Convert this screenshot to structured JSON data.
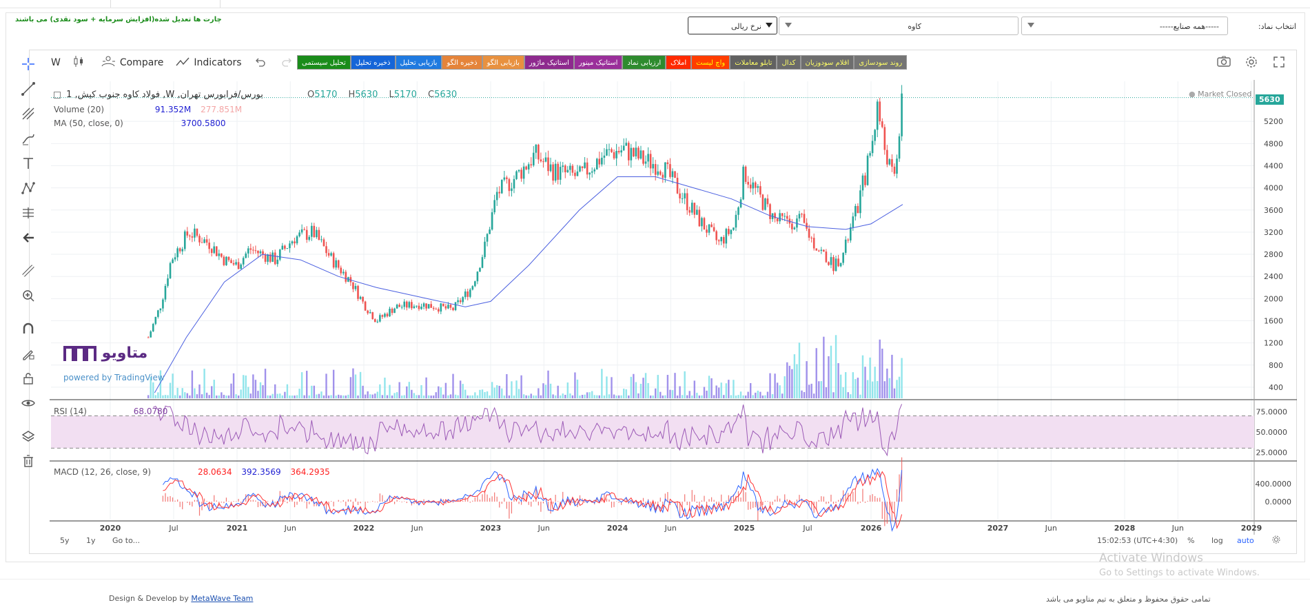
{
  "header": {
    "adjusted_note": "چارت ها تعدیل شده(افزایش سرمایه + سود نقدی) می باشند",
    "symbol_label": "انتخاب نماد:",
    "industry_select": "-----همه صنایع-----",
    "symbol_select": "کاوه",
    "currency_select": "نرخ ریالی"
  },
  "toolbar": {
    "interval": "W",
    "compare": "Compare",
    "indicators": "Indicators"
  },
  "colored_buttons": [
    {
      "label": "تحلیل سیستمی",
      "bg": "#1a8c1a",
      "fg": "#ffffff"
    },
    {
      "label": "ذخیره تحلیل",
      "bg": "#1565d8",
      "fg": "#ffffff"
    },
    {
      "label": "بازیابی تحلیل",
      "bg": "#1f7ae0",
      "fg": "#ffffff"
    },
    {
      "label": "ذخیره الگو",
      "bg": "#e5843a",
      "fg": "#ffffff"
    },
    {
      "label": "بازیابی الگو",
      "bg": "#e8913f",
      "fg": "#ffffff"
    },
    {
      "label": "استاتیک ماژور",
      "bg": "#8e2a8e",
      "fg": "#ffffff"
    },
    {
      "label": "استاتیک مینور",
      "bg": "#9a2f9a",
      "fg": "#ffffff"
    },
    {
      "label": "ارزیابی نماد",
      "bg": "#2e8b2e",
      "fg": "#ffffff"
    },
    {
      "label": "املاک",
      "bg": "#ff2a00",
      "fg": "#ffffff"
    },
    {
      "label": "واچ لیست",
      "bg": "#ff3d00",
      "fg": "#ffff00"
    },
    {
      "label": "تابلو معاملات",
      "bg": "#616161",
      "fg": "#ffff66"
    },
    {
      "label": "کدال",
      "bg": "#6b6b6b",
      "fg": "#ffff66"
    },
    {
      "label": "اقلام سودوزیان",
      "bg": "#6e6e6e",
      "fg": "#ffff66"
    },
    {
      "label": "روند سودسازی",
      "bg": "#757575",
      "fg": "#ffff66"
    }
  ],
  "legend": {
    "title": "1 ,فولاد کاوه جنوب کیش ,W ,بورس/فرابورس تهران",
    "o_label": "O",
    "o": "5170",
    "h_label": "H",
    "h": "5630",
    "l_label": "L",
    "l": "5170",
    "c_label": "C",
    "c": "5630",
    "volume_label": "Volume (20)",
    "volume_v1": "91.352M",
    "volume_v2": "277.851M",
    "ma_label": "MA (50, close, 0)",
    "ma_value": "3700.5800",
    "market_status": "Market Closed",
    "last_price": "5630",
    "rsi_label": "RSI (14)",
    "rsi_value": "68.0780",
    "macd_label": "MACD (12, 26, close, 9)",
    "macd_hist": "28.0634",
    "macd_line": "392.3569",
    "macd_signal": "364.2935"
  },
  "chart_data": {
    "type": "candlestick",
    "interval": "weekly",
    "y_ticks": [
      400,
      800,
      1200,
      1600,
      2000,
      2400,
      2800,
      3200,
      3600,
      4000,
      4400,
      4800,
      5200
    ],
    "x_ticks": [
      "2020",
      "Jul",
      "2021",
      "Jun",
      "2022",
      "Jun",
      "2023",
      "Jun",
      "2024",
      "Jun",
      "2025",
      "Jul",
      "2026",
      "2027",
      "Jun",
      "2028",
      "Jun",
      "2029"
    ],
    "x_tick_pos": [
      0.0,
      0.5,
      1.0,
      1.42,
      2.0,
      2.42,
      3.0,
      3.42,
      4.0,
      4.42,
      5.0,
      5.5,
      6.0,
      7.0,
      7.42,
      8.0,
      8.42,
      9.0
    ],
    "price_path": [
      [
        0.3,
        1300
      ],
      [
        0.4,
        1900
      ],
      [
        0.48,
        2700
      ],
      [
        0.62,
        3200
      ],
      [
        0.78,
        3000
      ],
      [
        0.9,
        2700
      ],
      [
        1.0,
        2600
      ],
      [
        1.1,
        2900
      ],
      [
        1.3,
        2700
      ],
      [
        1.45,
        3100
      ],
      [
        1.6,
        3200
      ],
      [
        1.75,
        2700
      ],
      [
        1.9,
        2300
      ],
      [
        2.0,
        1900
      ],
      [
        2.1,
        1600
      ],
      [
        2.25,
        1850
      ],
      [
        2.45,
        1900
      ],
      [
        2.7,
        1800
      ],
      [
        2.85,
        2200
      ],
      [
        2.95,
        2900
      ],
      [
        3.05,
        3900
      ],
      [
        3.2,
        4200
      ],
      [
        3.35,
        4600
      ],
      [
        3.5,
        4300
      ],
      [
        3.7,
        4200
      ],
      [
        3.9,
        4600
      ],
      [
        4.05,
        4700
      ],
      [
        4.2,
        4500
      ],
      [
        4.35,
        4400
      ],
      [
        4.5,
        3900
      ],
      [
        4.65,
        3400
      ],
      [
        4.8,
        3000
      ],
      [
        4.92,
        3300
      ],
      [
        5.0,
        4300
      ],
      [
        5.1,
        3900
      ],
      [
        5.25,
        3400
      ],
      [
        5.45,
        3400
      ],
      [
        5.55,
        3000
      ],
      [
        5.7,
        2600
      ],
      [
        5.78,
        2800
      ],
      [
        5.9,
        3700
      ],
      [
        6.0,
        4700
      ],
      [
        6.05,
        5500
      ],
      [
        6.1,
        4800
      ],
      [
        6.18,
        4100
      ],
      [
        6.25,
        5630
      ]
    ],
    "ma_path": [
      [
        0.35,
        300
      ],
      [
        0.6,
        1300
      ],
      [
        0.9,
        2300
      ],
      [
        1.2,
        2800
      ],
      [
        1.5,
        2700
      ],
      [
        1.8,
        2400
      ],
      [
        2.1,
        2200
      ],
      [
        2.5,
        2000
      ],
      [
        2.8,
        1850
      ],
      [
        3.0,
        1950
      ],
      [
        3.3,
        2600
      ],
      [
        3.7,
        3600
      ],
      [
        4.0,
        4200
      ],
      [
        4.3,
        4200
      ],
      [
        4.6,
        4000
      ],
      [
        4.9,
        3800
      ],
      [
        5.2,
        3500
      ],
      [
        5.5,
        3300
      ],
      [
        5.8,
        3250
      ],
      [
        6.0,
        3350
      ],
      [
        6.25,
        3700
      ]
    ],
    "rsi_ticks": [
      "75.0000",
      "50.0000",
      "25.0000"
    ],
    "macd_ticks": [
      "400.0000",
      "0.0000"
    ]
  },
  "bottom": {
    "range_5y": "5y",
    "range_1y": "1y",
    "goto": "Go to...",
    "time": "15:02:53 (UTC+4:30)",
    "percent": "%",
    "log": "log",
    "auto": "auto"
  },
  "branding": {
    "logo_text": "متاویو",
    "powered": "powered by TradingView"
  },
  "windows": {
    "activate": "Activate Windows",
    "goto_settings": "Go to Settings to activate Windows."
  },
  "footer": {
    "design": "Design & Develop by",
    "team": "MetaWave Team",
    "rights": "تمامی حقوق محفوظ و متعلق به تیم متاویو می باشد"
  }
}
